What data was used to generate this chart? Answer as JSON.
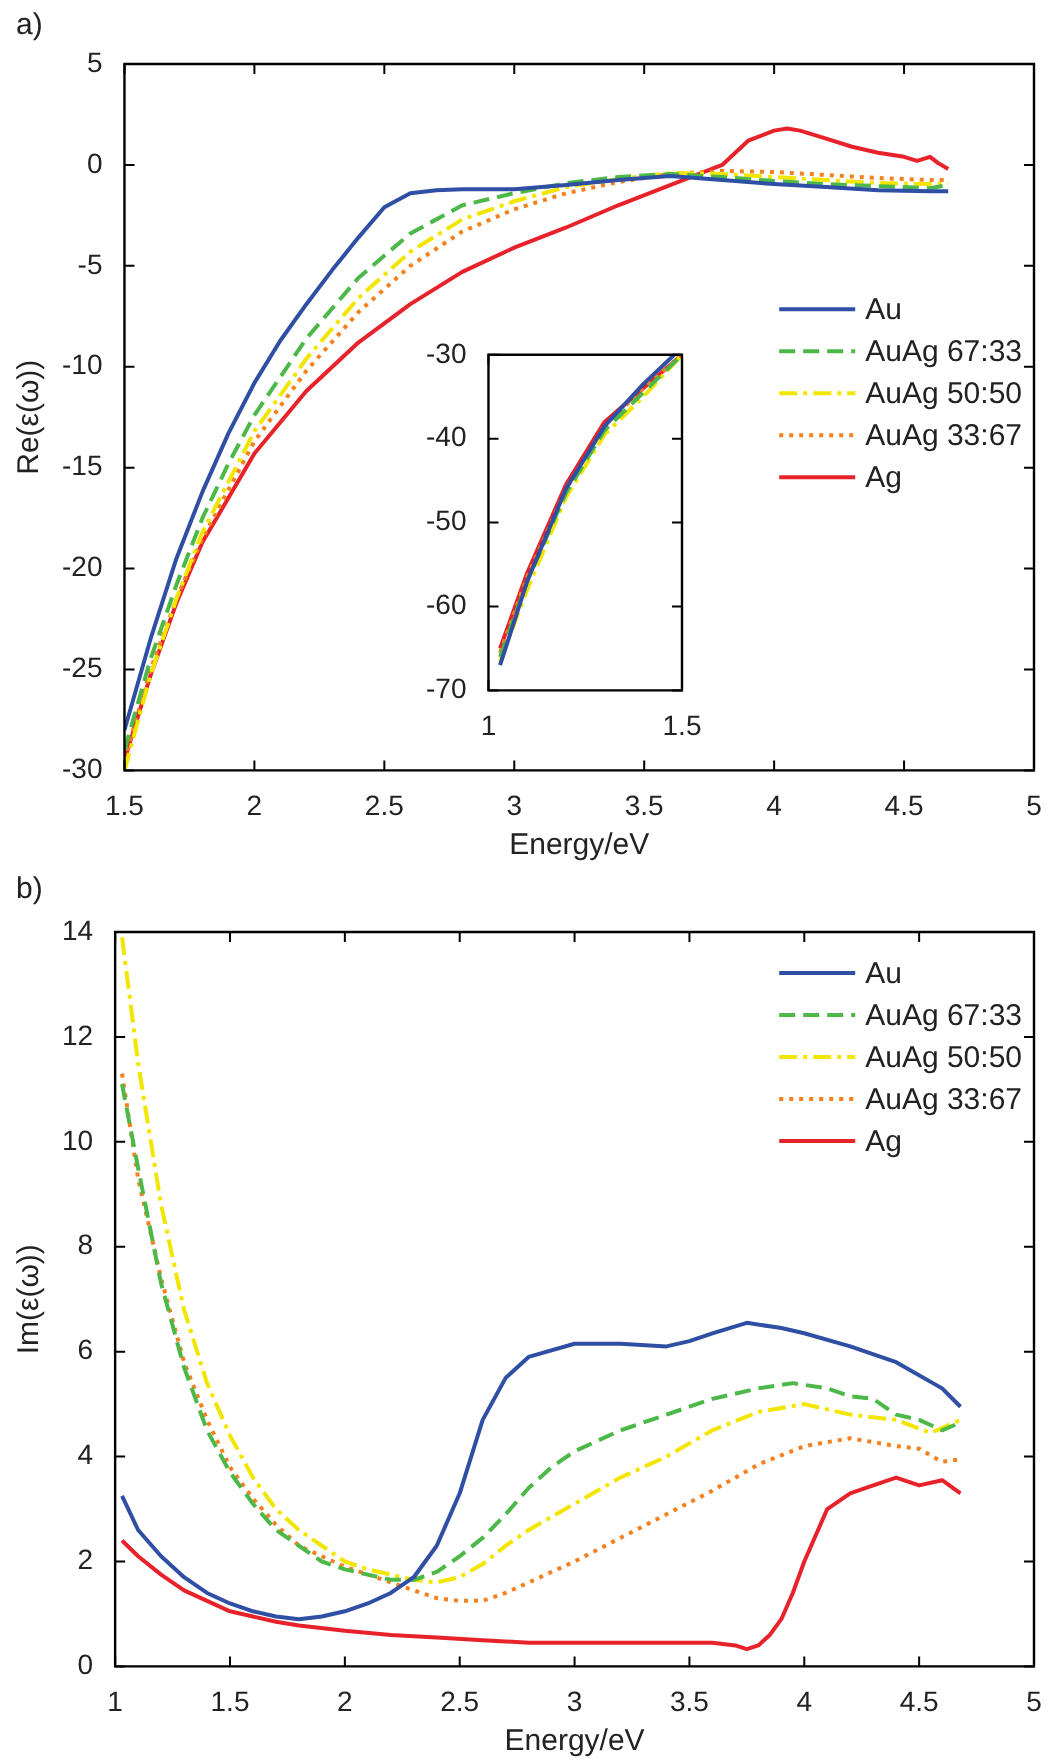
{
  "chart_data": [
    {
      "type": "line",
      "xlabel": "Energy/eV",
      "ylabel": "Re(ε(ω))",
      "annotations": [
        "a)"
      ],
      "xlim": [
        1.5,
        5
      ],
      "xticks": [
        1.5,
        2,
        2.5,
        3,
        3.5,
        4,
        4.5,
        5
      ],
      "ylim": [
        -30,
        5
      ],
      "yticks": [
        -30,
        -25,
        -20,
        -15,
        -10,
        -5,
        0,
        5
      ],
      "grid": false,
      "legend": "right",
      "series": [
        {
          "name": "Au",
          "color": "#2e4fa3",
          "line_style": "solid",
          "x": [
            1.5,
            1.6,
            1.7,
            1.8,
            1.9,
            2.0,
            2.1,
            2.2,
            2.3,
            2.4,
            2.5,
            2.6,
            2.7,
            2.8,
            3.0,
            3.2,
            3.4,
            3.6,
            3.8,
            4.0,
            4.2,
            4.4,
            4.6,
            4.67
          ],
          "values": [
            -28,
            -23.5,
            -19.5,
            -16.2,
            -13.3,
            -10.8,
            -8.7,
            -6.9,
            -5.2,
            -3.6,
            -2.1,
            -1.4,
            -1.25,
            -1.2,
            -1.2,
            -1.0,
            -0.75,
            -0.55,
            -0.75,
            -0.95,
            -1.1,
            -1.25,
            -1.3,
            -1.3
          ]
        },
        {
          "name": "AuAg 67:33",
          "color": "#4cb848",
          "line_style": "dashed",
          "x": [
            1.5,
            1.6,
            1.7,
            1.8,
            1.9,
            2.0,
            2.2,
            2.4,
            2.6,
            2.8,
            3.0,
            3.2,
            3.4,
            3.6,
            3.8,
            4.0,
            4.2,
            4.4,
            4.6,
            4.67
          ],
          "values": [
            -29,
            -24.5,
            -20.8,
            -17.5,
            -14.8,
            -12.4,
            -8.6,
            -5.6,
            -3.4,
            -2.0,
            -1.4,
            -0.9,
            -0.6,
            -0.45,
            -0.6,
            -0.8,
            -0.95,
            -1.05,
            -1.15,
            -1.0
          ]
        },
        {
          "name": "AuAg 50:50",
          "color": "#f2e600",
          "line_style": "dashdot",
          "x": [
            1.5,
            1.6,
            1.7,
            1.8,
            2.0,
            2.2,
            2.4,
            2.6,
            2.8,
            3.0,
            3.2,
            3.4,
            3.6,
            3.8,
            4.0,
            4.2,
            4.4,
            4.6,
            4.67
          ],
          "values": [
            -30,
            -25.3,
            -21.5,
            -18.2,
            -13.2,
            -9.6,
            -6.6,
            -4.3,
            -2.7,
            -1.8,
            -1.1,
            -0.7,
            -0.4,
            -0.45,
            -0.6,
            -0.75,
            -0.9,
            -0.95,
            -0.9
          ]
        },
        {
          "name": "AuAg 33:67",
          "color": "#f7801e",
          "line_style": "dotted",
          "x": [
            1.5,
            1.6,
            1.7,
            1.8,
            2.0,
            2.2,
            2.4,
            2.6,
            2.8,
            3.0,
            3.2,
            3.4,
            3.6,
            3.8,
            4.0,
            4.2,
            4.4,
            4.6,
            4.67
          ],
          "values": [
            -29.5,
            -25,
            -21.5,
            -18.5,
            -13.7,
            -10.2,
            -7.3,
            -5.0,
            -3.3,
            -2.2,
            -1.4,
            -0.85,
            -0.45,
            -0.3,
            -0.35,
            -0.5,
            -0.65,
            -0.75,
            -0.75
          ]
        },
        {
          "name": "Ag",
          "color": "#e8222a",
          "line_style": "solid",
          "x": [
            1.5,
            1.6,
            1.7,
            1.8,
            2.0,
            2.2,
            2.4,
            2.6,
            2.8,
            3.0,
            3.2,
            3.4,
            3.6,
            3.8,
            3.9,
            4.0,
            4.05,
            4.1,
            4.2,
            4.3,
            4.4,
            4.5,
            4.55,
            4.6,
            4.63,
            4.67
          ],
          "values": [
            -29.5,
            -25.3,
            -21.7,
            -18.7,
            -14.3,
            -11.2,
            -8.8,
            -6.9,
            -5.3,
            -4.1,
            -3.1,
            -2.0,
            -1.0,
            0.0,
            1.2,
            1.7,
            1.8,
            1.7,
            1.3,
            0.9,
            0.6,
            0.4,
            0.2,
            0.4,
            0.1,
            -0.2
          ]
        }
      ]
    },
    {
      "type": "line",
      "xlim": [
        1,
        1.5
      ],
      "xticks": [
        1,
        1.5
      ],
      "ylim": [
        -70,
        -30
      ],
      "yticks": [
        -70,
        -60,
        -50,
        -40,
        -30
      ],
      "grid": false,
      "series": [
        {
          "color": "#2e4fa3",
          "line_style": "solid",
          "x": [
            1.03,
            1.1,
            1.2,
            1.3,
            1.4,
            1.48
          ],
          "values": [
            -67,
            -57,
            -46,
            -38.5,
            -33.5,
            -30
          ]
        },
        {
          "color": "#4cb848",
          "line_style": "dashed",
          "x": [
            1.03,
            1.1,
            1.2,
            1.3,
            1.4,
            1.5
          ],
          "values": [
            -66,
            -57,
            -46.5,
            -39,
            -34.5,
            -30
          ]
        },
        {
          "color": "#f2e600",
          "line_style": "dashdot",
          "x": [
            1.03,
            1.1,
            1.2,
            1.3,
            1.4,
            1.5
          ],
          "values": [
            -66.5,
            -58,
            -47,
            -39.5,
            -35,
            -30
          ]
        },
        {
          "color": "#f7801e",
          "line_style": "dotted",
          "x": [
            1.03,
            1.1,
            1.2,
            1.3,
            1.4,
            1.5
          ],
          "values": [
            -65.5,
            -56.5,
            -46,
            -38.5,
            -34,
            -30
          ]
        },
        {
          "color": "#e8222a",
          "line_style": "solid",
          "x": [
            1.03,
            1.1,
            1.2,
            1.3,
            1.4,
            1.5
          ],
          "values": [
            -65,
            -56,
            -45.5,
            -38,
            -34,
            -30
          ]
        }
      ]
    },
    {
      "type": "line",
      "xlabel": "Energy/eV",
      "ylabel": "Im(ε(ω))",
      "annotations": [
        "b)"
      ],
      "xlim": [
        1,
        5
      ],
      "xticks": [
        1,
        1.5,
        2,
        2.5,
        3,
        3.5,
        4,
        4.5,
        5
      ],
      "ylim": [
        0,
        14
      ],
      "yticks": [
        0,
        2,
        4,
        6,
        8,
        10,
        12,
        14
      ],
      "grid": false,
      "legend": "top right",
      "series": [
        {
          "name": "Au",
          "color": "#2e4fa3",
          "line_style": "solid",
          "x": [
            1.03,
            1.1,
            1.2,
            1.3,
            1.4,
            1.5,
            1.6,
            1.7,
            1.8,
            1.9,
            2.0,
            2.1,
            2.2,
            2.3,
            2.4,
            2.5,
            2.6,
            2.7,
            2.8,
            3.0,
            3.2,
            3.4,
            3.5,
            3.6,
            3.75,
            3.9,
            4.0,
            4.2,
            4.4,
            4.6,
            4.68
          ],
          "values": [
            3.25,
            2.6,
            2.1,
            1.7,
            1.4,
            1.2,
            1.05,
            0.95,
            0.9,
            0.95,
            1.05,
            1.2,
            1.4,
            1.7,
            2.3,
            3.3,
            4.7,
            5.5,
            5.9,
            6.15,
            6.15,
            6.1,
            6.2,
            6.35,
            6.55,
            6.45,
            6.35,
            6.1,
            5.8,
            5.3,
            4.95
          ]
        },
        {
          "name": "AuAg 67:33",
          "color": "#4cb848",
          "line_style": "dashed",
          "x": [
            1.03,
            1.1,
            1.2,
            1.3,
            1.4,
            1.5,
            1.6,
            1.7,
            1.8,
            1.9,
            2.0,
            2.1,
            2.2,
            2.3,
            2.4,
            2.5,
            2.6,
            2.7,
            2.8,
            2.9,
            3.0,
            3.2,
            3.4,
            3.6,
            3.8,
            3.95,
            4.1,
            4.2,
            4.3,
            4.4,
            4.5,
            4.6,
            4.68
          ],
          "values": [
            11.1,
            9.5,
            7.3,
            5.7,
            4.5,
            3.7,
            3.1,
            2.6,
            2.3,
            2.0,
            1.85,
            1.75,
            1.65,
            1.65,
            1.8,
            2.1,
            2.45,
            2.9,
            3.4,
            3.8,
            4.1,
            4.5,
            4.8,
            5.1,
            5.3,
            5.4,
            5.3,
            5.15,
            5.1,
            4.8,
            4.7,
            4.5,
            4.65
          ]
        },
        {
          "name": "AuAg 50:50",
          "color": "#f2e600",
          "line_style": "dashdot",
          "x": [
            1.03,
            1.1,
            1.2,
            1.3,
            1.4,
            1.5,
            1.6,
            1.7,
            1.8,
            1.9,
            2.0,
            2.1,
            2.2,
            2.3,
            2.4,
            2.5,
            2.6,
            2.7,
            2.8,
            3.0,
            3.2,
            3.4,
            3.6,
            3.8,
            4.0,
            4.1,
            4.2,
            4.4,
            4.55,
            4.68
          ],
          "values": [
            13.9,
            11.5,
            8.8,
            6.8,
            5.4,
            4.4,
            3.6,
            3.0,
            2.6,
            2.3,
            2.0,
            1.85,
            1.75,
            1.65,
            1.6,
            1.7,
            1.95,
            2.3,
            2.6,
            3.1,
            3.6,
            4.0,
            4.5,
            4.85,
            5.0,
            4.9,
            4.8,
            4.7,
            4.45,
            4.7
          ]
        },
        {
          "name": "AuAg 33:67",
          "color": "#f7801e",
          "line_style": "dotted",
          "x": [
            1.03,
            1.1,
            1.2,
            1.3,
            1.4,
            1.5,
            1.6,
            1.7,
            1.8,
            1.9,
            2.0,
            2.1,
            2.2,
            2.3,
            2.4,
            2.5,
            2.6,
            2.7,
            2.8,
            3.0,
            3.2,
            3.4,
            3.6,
            3.8,
            4.0,
            4.2,
            4.4,
            4.5,
            4.6,
            4.68
          ],
          "values": [
            11.3,
            9.3,
            7.4,
            5.8,
            4.7,
            3.8,
            3.2,
            2.7,
            2.3,
            2.1,
            1.9,
            1.75,
            1.6,
            1.45,
            1.3,
            1.25,
            1.25,
            1.4,
            1.6,
            2.0,
            2.45,
            2.9,
            3.35,
            3.85,
            4.2,
            4.35,
            4.2,
            4.15,
            3.9,
            3.95
          ]
        },
        {
          "name": "Ag",
          "color": "#e8222a",
          "line_style": "solid",
          "x": [
            1.03,
            1.1,
            1.2,
            1.3,
            1.4,
            1.5,
            1.6,
            1.7,
            1.8,
            2.0,
            2.2,
            2.4,
            2.6,
            2.8,
            3.0,
            3.2,
            3.4,
            3.6,
            3.7,
            3.75,
            3.8,
            3.85,
            3.9,
            3.95,
            4.0,
            4.05,
            4.1,
            4.2,
            4.3,
            4.4,
            4.5,
            4.6,
            4.68
          ],
          "values": [
            2.4,
            2.1,
            1.75,
            1.45,
            1.25,
            1.05,
            0.95,
            0.85,
            0.78,
            0.68,
            0.6,
            0.55,
            0.5,
            0.45,
            0.45,
            0.45,
            0.45,
            0.45,
            0.4,
            0.33,
            0.4,
            0.6,
            0.9,
            1.4,
            2.0,
            2.5,
            3.0,
            3.3,
            3.45,
            3.6,
            3.45,
            3.55,
            3.3
          ]
        }
      ]
    }
  ]
}
